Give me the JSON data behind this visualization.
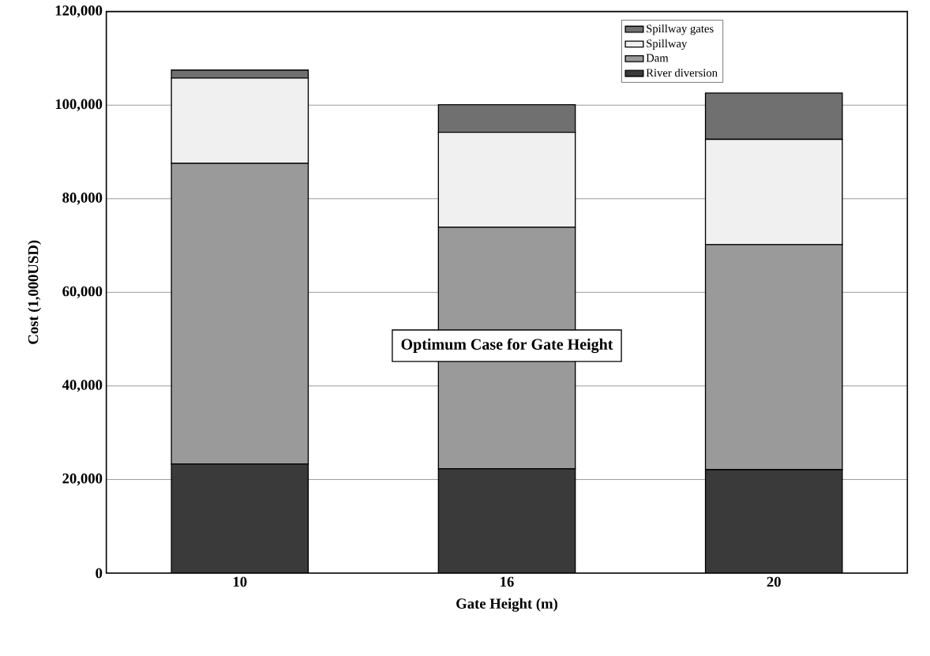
{
  "chart_data": {
    "type": "bar",
    "stacked": true,
    "xlabel": "Gate Height   (m)",
    "ylabel": "Cost   (1,000USD)",
    "categories": [
      "10",
      "16",
      "20"
    ],
    "series": [
      {
        "name": "River diversion",
        "color": "#3a3a3a",
        "values": [
          23300,
          22300,
          22100
        ]
      },
      {
        "name": "Dam",
        "color": "#9a9a9a",
        "values": [
          64300,
          51600,
          48100
        ]
      },
      {
        "name": "Spillway",
        "color": "#f0f0f0",
        "values": [
          18200,
          20300,
          22500
        ]
      },
      {
        "name": "Spillway gates",
        "color": "#707070",
        "values": [
          1700,
          5900,
          9900
        ]
      }
    ],
    "ylim": [
      0,
      120000
    ],
    "yticks": [
      {
        "value": 0,
        "label": "0"
      },
      {
        "value": 20000,
        "label": "20,000"
      },
      {
        "value": 40000,
        "label": "40,000"
      },
      {
        "value": 60000,
        "label": "60,000"
      },
      {
        "value": 80000,
        "label": "80,000"
      },
      {
        "value": 100000,
        "label": "100,000"
      },
      {
        "value": 120000,
        "label": "120,000"
      }
    ],
    "grid": "y",
    "legend": "top right",
    "annotations": [
      "Optimum Case for Gate Height"
    ]
  }
}
